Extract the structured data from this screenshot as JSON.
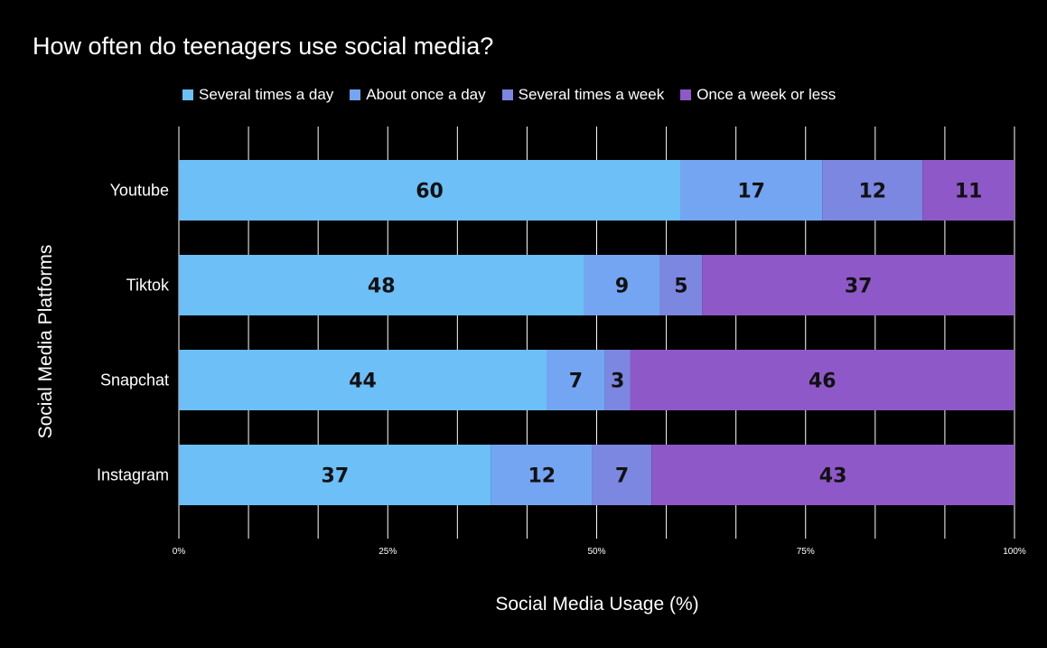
{
  "chart_data": {
    "type": "bar",
    "orientation": "horizontal",
    "stacked": "percent",
    "title": "How often do teenagers use social media?",
    "xlabel": "Social Media Usage (%)",
    "ylabel": "Social Media Platforms",
    "categories": [
      "Youtube",
      "Tiktok",
      "Snapchat",
      "Instagram"
    ],
    "series": [
      {
        "name": "Several times a day",
        "color": "#6cbff7",
        "values": [
          60,
          48,
          44,
          37
        ]
      },
      {
        "name": "About once a day",
        "color": "#74a5f2",
        "values": [
          17,
          9,
          7,
          12
        ]
      },
      {
        "name": "Several times a week",
        "color": "#7b87e0",
        "values": [
          12,
          5,
          3,
          7
        ]
      },
      {
        "name": "Once a week or less",
        "color": "#8f58c8",
        "values": [
          11,
          37,
          46,
          43
        ]
      }
    ],
    "xticks": [
      "0%",
      "25%",
      "50%",
      "75%",
      "100%"
    ],
    "xlim": [
      0,
      100
    ],
    "grid": true,
    "legend_position": "top"
  }
}
